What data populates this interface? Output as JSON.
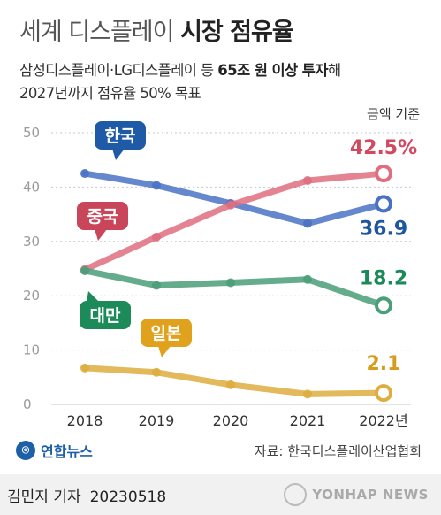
{
  "title": {
    "light": "세계 디스플레이",
    "bold": "시장 점유율"
  },
  "subtitle": {
    "line1_pre": "삼성디스플레이·LG디스플레이 등 ",
    "line1_bold": "65조 원 이상 투자",
    "line1_post": "해",
    "line2": "2027년까지 점유율 50% 목표"
  },
  "unit_note": "금액 기준",
  "chart_data": {
    "type": "line",
    "x": [
      "2018",
      "2019",
      "2020",
      "2021",
      "2022년"
    ],
    "ylim": [
      0,
      50
    ],
    "y_ticks": [
      "0",
      "10",
      "20",
      "30",
      "40",
      "50"
    ],
    "grid": true,
    "series": [
      {
        "name": "한국",
        "values": [
          42.5,
          40.3,
          37.0,
          33.3,
          36.9
        ],
        "color": "#4a72c4",
        "label_color": "#1e56a0",
        "bubble": "#1f5aa6",
        "end_label": "36.9"
      },
      {
        "name": "중국",
        "values": [
          24.8,
          30.8,
          36.7,
          41.2,
          42.5
        ],
        "color": "#df6e7f",
        "label_color": "#d2485e",
        "bubble": "#c8455a",
        "end_label": "42.5%"
      },
      {
        "name": "대만",
        "values": [
          24.6,
          21.9,
          22.4,
          23.0,
          18.2
        ],
        "color": "#4a9e78",
        "label_color": "#1b8a58",
        "bubble": "#1d8a5a",
        "end_label": "18.2"
      },
      {
        "name": "일본",
        "values": [
          6.7,
          5.9,
          3.6,
          1.9,
          2.1
        ],
        "color": "#ddad3e",
        "label_color": "#d69c1b",
        "bubble": "#e0a21c",
        "end_label": "2.1"
      }
    ]
  },
  "logo": {
    "icon": "yonhap-logo-icon",
    "text": "연합뉴스"
  },
  "source": "자료: 한국디스플레이산업협회",
  "credit": {
    "author": "김민지 기자",
    "date": "20230518"
  },
  "watermark": "YONHAP NEWS"
}
